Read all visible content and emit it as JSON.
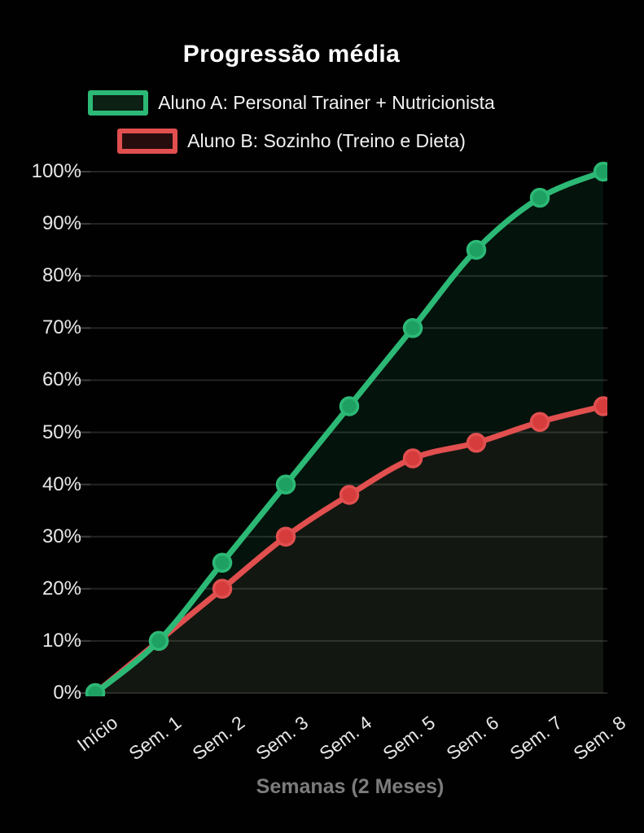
{
  "title": "Progressão média",
  "chart_data": {
    "type": "line",
    "title": "Progressão média",
    "xlabel": "Semanas (2 Meses)",
    "ylabel": "",
    "categories": [
      "Início",
      "Sem. 1",
      "Sem. 2",
      "Sem. 3",
      "Sem. 4",
      "Sem. 5",
      "Sem. 6",
      "Sem. 7",
      "Sem. 8"
    ],
    "series": [
      {
        "name": "Aluno A: Personal Trainer + Nutricionista",
        "values": [
          0,
          10,
          25,
          40,
          55,
          70,
          85,
          95,
          100
        ],
        "color": "#2cb976",
        "point_fill": "#1fa063",
        "area_opacity": 0.1,
        "swatch_fill": "#0c2014"
      },
      {
        "name": "Aluno B: Sozinho (Treino e Dieta)",
        "values": [
          0,
          10,
          20,
          30,
          38,
          45,
          48,
          52,
          55
        ],
        "color": "#e14f4f",
        "point_fill": "#d63c3c",
        "area_opacity": 0.07,
        "swatch_fill": "#260d0d"
      }
    ],
    "ylim": [
      0,
      100
    ],
    "y_ticks": [
      0,
      10,
      20,
      30,
      40,
      50,
      60,
      70,
      80,
      90,
      100
    ],
    "y_tick_suffix": "%",
    "grid": true,
    "legend_position": "top",
    "background": "#010101",
    "smooth_lines": true
  }
}
